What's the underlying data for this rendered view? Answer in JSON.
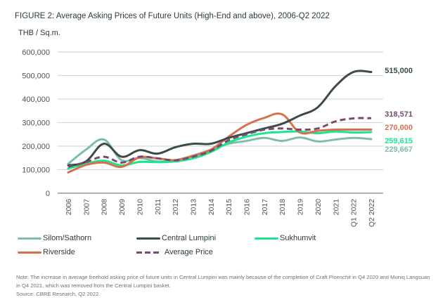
{
  "header": {
    "title": "FIGURE 2: Average Asking Prices of Future Units (High-End and above), 2006-Q2 2022",
    "unit": "THB / Sq.m."
  },
  "chart_data": {
    "type": "line",
    "title": "FIGURE 2: Average Asking Prices of Future Units (High-End and above), 2006-Q2 2022",
    "xlabel": "",
    "ylabel": "THB / Sq.m.",
    "ylim": [
      0,
      600000
    ],
    "yticks": [
      0,
      100000,
      200000,
      300000,
      400000,
      500000,
      600000
    ],
    "ytick_labels": [
      "0",
      "100,000",
      "200,000",
      "300,000",
      "400,000",
      "500,000",
      "600,000"
    ],
    "grid": true,
    "legend_position": "bottom",
    "categories": [
      "2006",
      "2007",
      "2008",
      "2009",
      "2010",
      "2011",
      "2012",
      "2013",
      "2014",
      "2015",
      "2016",
      "2017",
      "2018",
      "2019",
      "2020",
      "2021",
      "Q1 2022",
      "Q2 2022"
    ],
    "series": [
      {
        "name": "Silom/Sathorn",
        "color": "#7fbcaa",
        "dashed": false,
        "values": [
          125000,
          185000,
          228000,
          140000,
          150000,
          135000,
          140000,
          160000,
          185000,
          210000,
          222000,
          235000,
          222000,
          237000,
          220000,
          228000,
          235000,
          229667
        ]
      },
      {
        "name": "Central Lumpini",
        "color": "#3b4a4a",
        "dashed": false,
        "values": [
          118000,
          135000,
          210000,
          155000,
          183000,
          168000,
          195000,
          210000,
          210000,
          235000,
          255000,
          275000,
          295000,
          330000,
          365000,
          455000,
          515000,
          515000
        ]
      },
      {
        "name": "Sukhumvit",
        "color": "#17e88f",
        "dashed": false,
        "values": [
          105000,
          125000,
          138000,
          118000,
          133000,
          132000,
          135000,
          148000,
          175000,
          215000,
          240000,
          255000,
          260000,
          262000,
          255000,
          262000,
          258000,
          259615
        ]
      },
      {
        "name": "Riverside",
        "color": "#d6714d",
        "dashed": false,
        "values": [
          88000,
          120000,
          130000,
          112000,
          152000,
          148000,
          140000,
          158000,
          185000,
          240000,
          290000,
          320000,
          335000,
          258000,
          265000,
          270000,
          270000,
          270000
        ]
      },
      {
        "name": "Average Price",
        "color": "#7b4a6e",
        "dashed": true,
        "values": [
          112000,
          132000,
          155000,
          130000,
          155000,
          148000,
          140000,
          155000,
          180000,
          225000,
          250000,
          270000,
          275000,
          270000,
          275000,
          305000,
          318000,
          318571
        ]
      }
    ],
    "end_labels": [
      {
        "series": "Central Lumpini",
        "text": "515,000",
        "color": "#3b4a4a"
      },
      {
        "series": "Average Price",
        "text": "318,571",
        "color": "#7b4a6e"
      },
      {
        "series": "Riverside",
        "text": "270,000",
        "color": "#d6714d"
      },
      {
        "series": "Sukhumvit",
        "text": "259,615",
        "color": "#17e88f"
      },
      {
        "series": "Silom/Sathorn",
        "text": "229,667",
        "color": "#7fbcaa"
      }
    ]
  },
  "legend": [
    {
      "label": "Silom/Sathorn",
      "color": "#7fbcaa",
      "dashed": false
    },
    {
      "label": "Central Lumpini",
      "color": "#3b4a4a",
      "dashed": false
    },
    {
      "label": "Sukhumvit",
      "color": "#17e88f",
      "dashed": false
    },
    {
      "label": "Riverside",
      "color": "#d6714d",
      "dashed": false
    },
    {
      "label": "Average Price",
      "color": "#7b4a6e",
      "dashed": true
    }
  ],
  "footer": {
    "note": "Note: The increase in average freehold asking price of future units in Central Lumpini was mainly because of the completion of Craft Ploenchit in Q4 2020 and Muniq Langsuan in Q4 2021, which was removed from the Central Lumpini basket.",
    "source": "Source: CBRE Research, Q2 2022"
  }
}
